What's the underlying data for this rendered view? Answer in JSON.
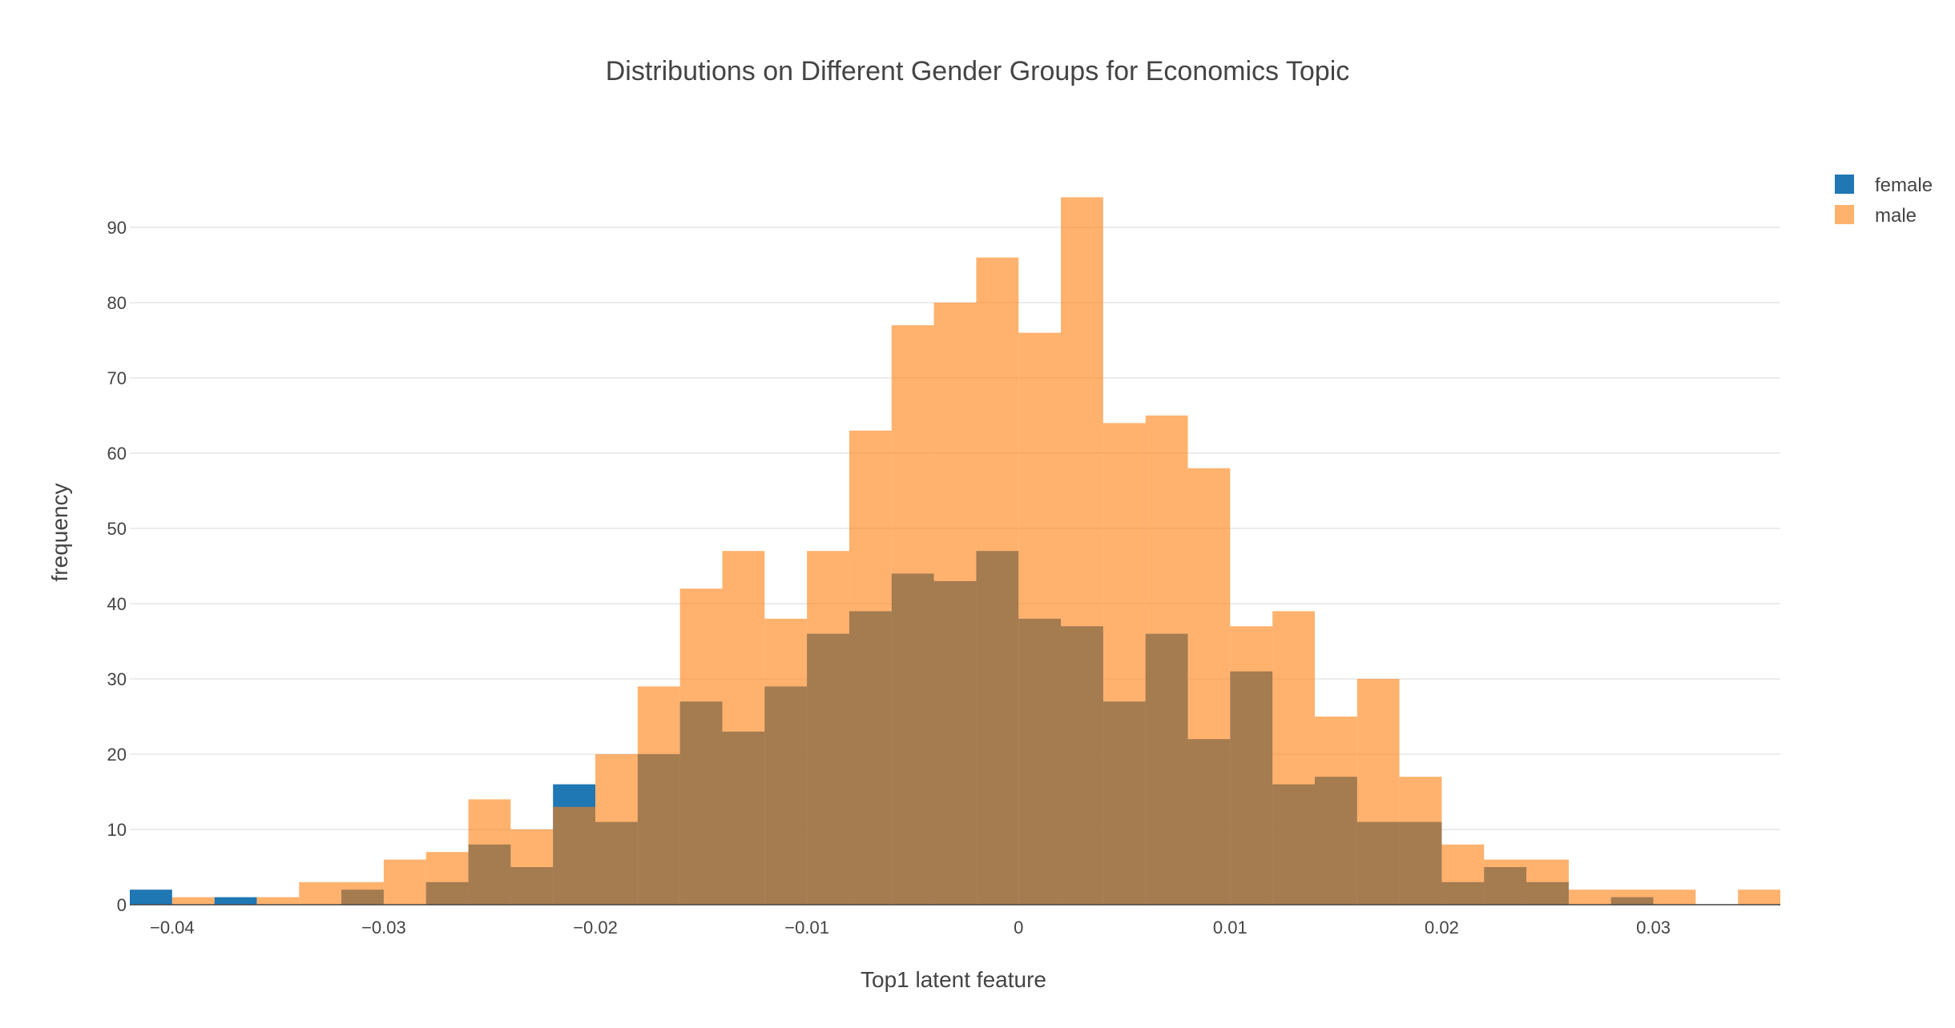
{
  "chart_data": {
    "type": "bar",
    "title": "Distributions on Different Gender Groups for Economics Topic",
    "xlabel": "Top1 latent feature",
    "ylabel": "frequency",
    "xlim": [
      -0.042,
      0.036
    ],
    "ylim": [
      0,
      100
    ],
    "x_ticks": [
      -0.04,
      -0.03,
      -0.02,
      -0.01,
      0,
      0.01,
      0.02,
      0.03
    ],
    "x_tick_labels": [
      "−0.04",
      "−0.03",
      "−0.02",
      "−0.01",
      "0",
      "0.01",
      "0.02",
      "0.03"
    ],
    "y_ticks": [
      0,
      10,
      20,
      30,
      40,
      50,
      60,
      70,
      80,
      90
    ],
    "y_tick_labels": [
      "0",
      "10",
      "20",
      "30",
      "40",
      "50",
      "60",
      "70",
      "80",
      "90"
    ],
    "grid": true,
    "legend_position": "top-right",
    "bin_width": 0.002,
    "bin_starts": [
      -0.042,
      -0.04,
      -0.038,
      -0.036,
      -0.034,
      -0.032,
      -0.03,
      -0.028,
      -0.026,
      -0.024,
      -0.022,
      -0.02,
      -0.018,
      -0.016,
      -0.014,
      -0.012,
      -0.01,
      -0.008,
      -0.006,
      -0.004,
      -0.002,
      0.0,
      0.002,
      0.004,
      0.006,
      0.008,
      0.01,
      0.012,
      0.014,
      0.016,
      0.018,
      0.02,
      0.022,
      0.024,
      0.026,
      0.028,
      0.03,
      0.032,
      0.034
    ],
    "series": [
      {
        "name": "female",
        "color": "#1f77b4",
        "opacity": 1.0,
        "values": [
          2,
          0,
          1,
          0,
          0,
          2,
          0,
          3,
          8,
          5,
          16,
          11,
          20,
          27,
          23,
          29,
          36,
          39,
          44,
          43,
          47,
          38,
          37,
          27,
          36,
          22,
          31,
          16,
          17,
          11,
          11,
          3,
          5,
          3,
          0,
          1,
          0,
          0,
          0
        ]
      },
      {
        "name": "male",
        "color": "#ff7f0e",
        "opacity": 0.6,
        "values": [
          0,
          1,
          0,
          1,
          3,
          3,
          6,
          7,
          14,
          10,
          13,
          20,
          29,
          42,
          47,
          38,
          47,
          63,
          77,
          80,
          86,
          76,
          94,
          64,
          65,
          58,
          37,
          39,
          25,
          30,
          17,
          8,
          6,
          6,
          2,
          2,
          2,
          0,
          2
        ]
      }
    ]
  }
}
